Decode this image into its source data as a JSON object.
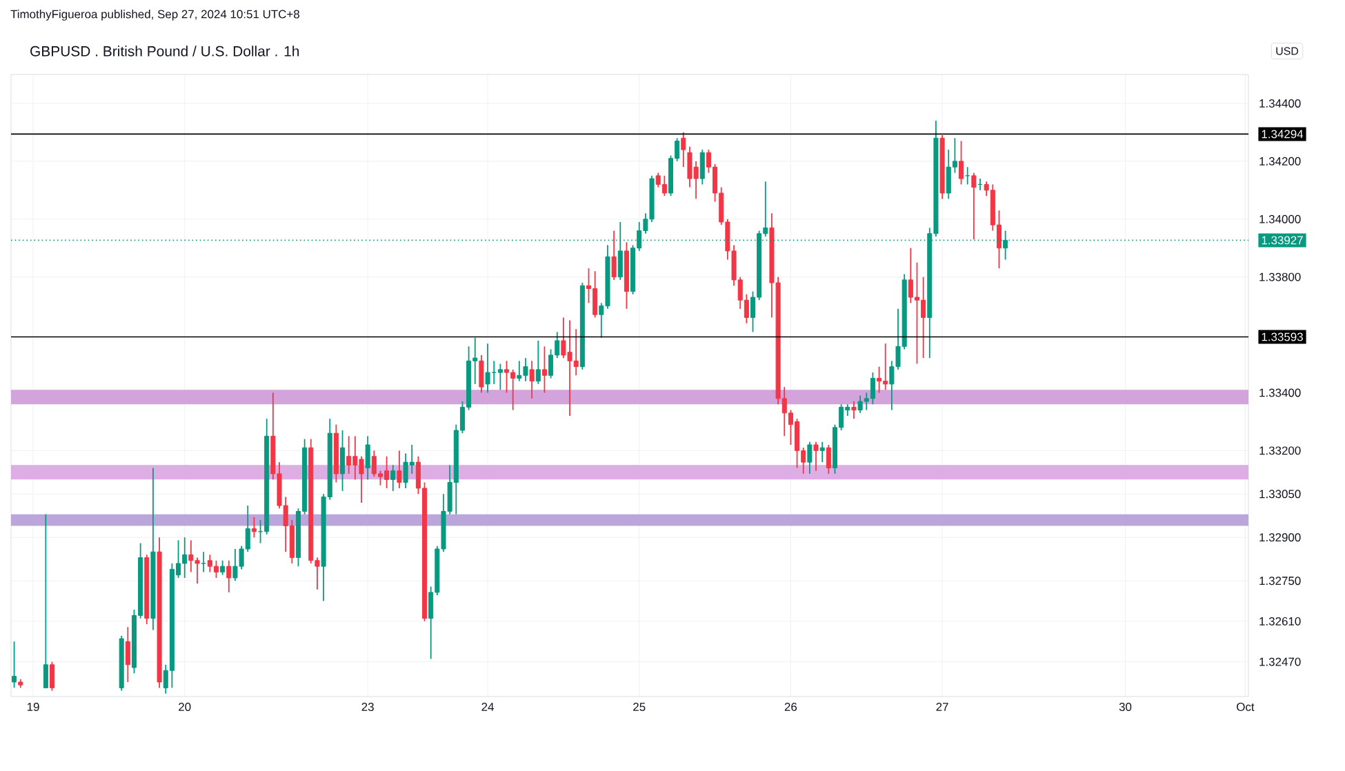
{
  "chart_data": {
    "type": "candlestick",
    "title": "GBPUSD . British Pound / U.S. Dollar . 1h",
    "annotations": [
      "TimothyFigueroa published, Sep 27, 2024 10:51 UTC+8",
      "USD"
    ],
    "grid": true,
    "ylim": [
      1.3235,
      1.345
    ],
    "yticks": [
      {
        "value": 1.344,
        "label": "1.34400"
      },
      {
        "value": 1.342,
        "label": "1.34200"
      },
      {
        "value": 1.34,
        "label": "1.34000"
      },
      {
        "value": 1.338,
        "label": "1.33800"
      },
      {
        "value": 1.334,
        "label": "1.33400"
      },
      {
        "value": 1.332,
        "label": "1.33200"
      },
      {
        "value": 1.3305,
        "label": "1.33050"
      },
      {
        "value": 1.329,
        "label": "1.32900"
      },
      {
        "value": 1.3275,
        "label": "1.32750"
      },
      {
        "value": 1.3261,
        "label": "1.32610"
      },
      {
        "value": 1.3247,
        "label": "1.32470"
      }
    ],
    "ref_lines": [
      {
        "axis": "y",
        "value": 1.34294,
        "label": "1.34294",
        "color": "#000000",
        "line_style": "solid"
      },
      {
        "axis": "y",
        "value": 1.33593,
        "label": "1.33593",
        "color": "#000000",
        "line_style": "solid"
      },
      {
        "axis": "y",
        "value": 1.33927,
        "label": "1.33927",
        "color": "#089981",
        "line_style": "dotted"
      }
    ],
    "bands": [
      {
        "axis": "y",
        "from": 1.3336,
        "to": 1.3341,
        "color": "#d3a3dc"
      },
      {
        "axis": "y",
        "from": 1.331,
        "to": 1.3315,
        "color": "#dcaee3"
      },
      {
        "axis": "y",
        "from": 1.3294,
        "to": 1.3298,
        "color": "#bba6dc"
      }
    ],
    "categories": [
      null,
      null,
      null,
      "19",
      null,
      null,
      null,
      null,
      null,
      null,
      null,
      null,
      null,
      null,
      null,
      null,
      null,
      null,
      null,
      null,
      null,
      null,
      null,
      null,
      null,
      null,
      null,
      "20",
      null,
      null,
      null,
      null,
      null,
      null,
      null,
      null,
      null,
      null,
      null,
      null,
      null,
      null,
      null,
      null,
      null,
      null,
      null,
      null,
      null,
      null,
      null,
      null,
      null,
      null,
      null,
      null,
      "23",
      null,
      null,
      null,
      null,
      null,
      null,
      null,
      null,
      null,
      null,
      null,
      null,
      null,
      null,
      null,
      null,
      null,
      null,
      "24",
      null,
      null,
      null,
      null,
      null,
      null,
      null,
      null,
      null,
      null,
      null,
      null,
      null,
      null,
      null,
      null,
      null,
      null,
      null,
      null,
      null,
      null,
      null,
      "25",
      null,
      null,
      null,
      null,
      null,
      null,
      null,
      null,
      null,
      null,
      null,
      null,
      null,
      null,
      null,
      null,
      null,
      null,
      null,
      null,
      null,
      null,
      null,
      "26",
      null,
      null,
      null,
      null,
      null,
      null,
      null,
      null,
      null,
      null,
      null,
      null,
      null,
      null,
      null,
      null,
      null,
      null,
      null,
      null,
      null,
      null,
      null,
      "27",
      null,
      null,
      null,
      null,
      null,
      null,
      null,
      null,
      null,
      null,
      null,
      null,
      null,
      null,
      null,
      null,
      null,
      null,
      null,
      null,
      null,
      null,
      null,
      null,
      null,
      null,
      null,
      null,
      "30",
      null,
      null,
      null,
      null,
      null,
      null,
      null,
      null,
      null,
      null,
      null,
      null,
      null,
      null,
      null,
      null,
      null,
      null,
      "Oct"
    ],
    "colors": [
      "#089981",
      "#f23645",
      null,
      null,
      null,
      "#089981",
      "#f23645",
      null,
      null,
      null,
      null,
      null,
      null,
      null,
      null,
      null,
      null,
      "#089981",
      "#f23645",
      "#089981",
      "#089981",
      "#f23645",
      "#089981",
      "#f23645",
      "#089981",
      "#089981",
      "#089981",
      "#089981",
      "#f23645",
      "#f23645",
      "#089981",
      "#f23645",
      "#f23645",
      "#089981",
      "#f23645",
      "#089981",
      "#089981",
      "#089981",
      "#f23645",
      "#089981",
      "#089981",
      "#f23645",
      "#f23645",
      "#f23645",
      "#f23645",
      "#089981",
      "#089981",
      "#f23645",
      "#f23645",
      "#089981",
      "#089981",
      "#f23645",
      "#089981",
      "#f23645",
      "#f23645",
      "#f23645",
      "#089981",
      "#f23645",
      "#f23645",
      "#f23645",
      "#089981",
      "#f23645",
      "#089981",
      "#089981",
      "#f23645",
      "#f23645",
      "#089981",
      "#089981",
      "#089981",
      "#089981",
      "#089981",
      "#089981",
      "#089981",
      "#089981",
      "#f23645",
      "#089981",
      "#089981",
      "#089981",
      "#f23645",
      "#f23645",
      "#089981",
      "#089981",
      "#f23645",
      "#089981",
      "#f23645",
      "#089981",
      "#089981",
      "#f23645",
      "#f23645",
      "#f23645",
      "#089981",
      "#f23645",
      "#f23645",
      "#089981",
      "#089981",
      "#f23645",
      "#089981",
      "#f23645",
      "#089981",
      "#089981",
      "#089981",
      "#089981",
      "#f23645",
      "#f23645",
      "#089981",
      "#089981",
      "#f23645",
      "#f23645",
      "#f23645",
      "#089981",
      "#f23645",
      "#f23645",
      "#f23645",
      "#f23645",
      "#f23645",
      "#f23645",
      "#f23645",
      "#089981",
      "#089981",
      "#089981",
      "#f23645",
      "#f23645",
      "#f23645",
      "#f23645",
      "#f23645",
      "#f23645",
      "#089981",
      "#f23645",
      "#089981",
      "#f23645",
      "#089981",
      "#089981",
      "#089981",
      "#f23645",
      "#089981",
      "#089981",
      "#089981",
      "#f23645",
      "#f23645",
      "#089981",
      "#089981",
      "#089981",
      "#f23645",
      "#f23645",
      "#f23645",
      "#089981",
      "#089981",
      "#f23645",
      "#089981",
      "#089981",
      "#f23645",
      "#089981",
      "#f23645",
      "#089981",
      "#f23645",
      "#f23645",
      "#f23645",
      "#089981",
      null,
      null,
      null,
      null,
      null,
      null,
      null,
      null,
      null,
      null,
      null,
      null,
      null,
      null,
      null,
      null,
      null,
      null,
      null,
      null,
      null,
      null,
      null,
      null,
      null,
      null,
      null,
      null,
      null,
      null,
      null,
      null,
      null,
      null,
      null,
      null,
      null,
      null
    ],
    "ohlc": [
      [
        1.324,
        1.3254,
        1.3238,
        1.3242
      ],
      [
        1.324,
        1.3241,
        1.3238,
        1.3239
      ],
      null,
      null,
      null,
      [
        1.3238,
        1.3298,
        1.3238,
        1.3246
      ],
      [
        1.3246,
        1.3247,
        1.3237,
        1.3238
      ],
      null,
      null,
      null,
      null,
      null,
      null,
      null,
      null,
      null,
      null,
      [
        1.3238,
        1.3256,
        1.3237,
        1.3255
      ],
      [
        1.3254,
        1.3259,
        1.324,
        1.3246
      ],
      [
        1.3245,
        1.3265,
        1.3243,
        1.3263
      ],
      [
        1.3263,
        1.3288,
        1.3262,
        1.3283
      ],
      [
        1.3283,
        1.3284,
        1.326,
        1.3262
      ],
      [
        1.3262,
        1.3314,
        1.3258,
        1.3285
      ],
      [
        1.3285,
        1.329,
        1.3238,
        1.324
      ],
      [
        1.3238,
        1.3246,
        1.3236,
        1.3244
      ],
      [
        1.3244,
        1.3281,
        1.3238,
        1.3279
      ],
      [
        1.3277,
        1.3289,
        1.3276,
        1.3281
      ],
      [
        1.3281,
        1.329,
        1.3276,
        1.3284
      ],
      [
        1.3284,
        1.3289,
        1.3278,
        1.3282
      ],
      [
        1.3282,
        1.3283,
        1.3274,
        1.3281
      ],
      [
        1.3281,
        1.3285,
        1.3278,
        1.3281
      ],
      [
        1.3282,
        1.3284,
        1.3278,
        1.328
      ],
      [
        1.328,
        1.3282,
        1.3276,
        1.3278
      ],
      [
        1.3278,
        1.3282,
        1.3277,
        1.328
      ],
      [
        1.328,
        1.3282,
        1.3271,
        1.3276
      ],
      [
        1.3276,
        1.3286,
        1.3275,
        1.328
      ],
      [
        1.328,
        1.3287,
        1.3279,
        1.3286
      ],
      [
        1.3286,
        1.3301,
        1.3285,
        1.3293
      ],
      [
        1.3293,
        1.3297,
        1.329,
        1.3292
      ],
      [
        1.3292,
        1.3296,
        1.3288,
        1.3292
      ],
      [
        1.3292,
        1.3331,
        1.3291,
        1.3325
      ],
      [
        1.3325,
        1.334,
        1.331,
        1.3312
      ],
      [
        1.3312,
        1.3316,
        1.33,
        1.3301
      ],
      [
        1.3301,
        1.3304,
        1.3285,
        1.3294
      ],
      [
        1.3294,
        1.3296,
        1.3281,
        1.3283
      ],
      [
        1.3283,
        1.33,
        1.328,
        1.3299
      ],
      [
        1.3299,
        1.3324,
        1.3298,
        1.3321
      ],
      [
        1.3321,
        1.3324,
        1.3281,
        1.3282
      ],
      [
        1.3282,
        1.3283,
        1.3272,
        1.328
      ],
      [
        1.328,
        1.3305,
        1.3268,
        1.3304
      ],
      [
        1.3304,
        1.3331,
        1.3303,
        1.3326
      ],
      [
        1.3326,
        1.3329,
        1.3309,
        1.3312
      ],
      [
        1.3312,
        1.3327,
        1.3306,
        1.3321
      ],
      [
        1.3318,
        1.3325,
        1.3312,
        1.3315
      ],
      [
        1.3318,
        1.3325,
        1.331,
        1.3315
      ],
      [
        1.3317,
        1.3318,
        1.3302,
        1.3312
      ],
      [
        1.3314,
        1.3325,
        1.331,
        1.3322
      ],
      [
        1.3318,
        1.332,
        1.3311,
        1.3312
      ],
      [
        1.3312,
        1.3313,
        1.3308,
        1.3311
      ],
      [
        1.3313,
        1.3318,
        1.3307,
        1.331
      ],
      [
        1.331,
        1.3315,
        1.3306,
        1.3313
      ],
      [
        1.3313,
        1.332,
        1.3307,
        1.3309
      ],
      [
        1.3309,
        1.3319,
        1.3307,
        1.3316
      ],
      [
        1.3315,
        1.3322,
        1.3312,
        1.3316
      ],
      [
        1.3316,
        1.3318,
        1.3305,
        1.3307
      ],
      [
        1.3307,
        1.3309,
        1.3261,
        1.3262
      ],
      [
        1.3262,
        1.3273,
        1.3248,
        1.3271
      ],
      [
        1.3271,
        1.3287,
        1.327,
        1.3286
      ],
      [
        1.3286,
        1.3305,
        1.3285,
        1.3299
      ],
      [
        1.3299,
        1.3315,
        1.3298,
        1.3309
      ],
      [
        1.3309,
        1.3329,
        1.3298,
        1.3327
      ],
      [
        1.3327,
        1.3337,
        1.3326,
        1.3335
      ],
      [
        1.3335,
        1.3356,
        1.3334,
        1.3351
      ],
      [
        1.3351,
        1.3359,
        1.3343,
        1.3352
      ],
      [
        1.3351,
        1.3353,
        1.334,
        1.3342
      ],
      [
        1.3343,
        1.3357,
        1.334,
        1.3347
      ],
      [
        1.3347,
        1.3351,
        1.3343,
        1.3347
      ],
      [
        1.3347,
        1.335,
        1.3341,
        1.3348
      ],
      [
        1.3348,
        1.3351,
        1.334,
        1.3347
      ],
      [
        1.3347,
        1.3348,
        1.3334,
        1.3345
      ],
      [
        1.3345,
        1.3351,
        1.3344,
        1.3346
      ],
      [
        1.3346,
        1.3352,
        1.3344,
        1.3349
      ],
      [
        1.3348,
        1.3351,
        1.3338,
        1.3344
      ],
      [
        1.3344,
        1.3358,
        1.3343,
        1.3348
      ],
      [
        1.3348,
        1.3356,
        1.334,
        1.3346
      ],
      [
        1.3346,
        1.3355,
        1.3345,
        1.3353
      ],
      [
        1.3353,
        1.3361,
        1.3352,
        1.3358
      ],
      [
        1.3358,
        1.3366,
        1.3352,
        1.3353
      ],
      [
        1.3354,
        1.3365,
        1.3332,
        1.3351
      ],
      [
        1.3351,
        1.3362,
        1.3346,
        1.3349
      ],
      [
        1.3349,
        1.3378,
        1.3348,
        1.3377
      ],
      [
        1.3377,
        1.3383,
        1.3371,
        1.3376
      ],
      [
        1.3376,
        1.3382,
        1.3366,
        1.3367
      ],
      [
        1.3367,
        1.3371,
        1.3359,
        1.337
      ],
      [
        1.337,
        1.3391,
        1.3369,
        1.3387
      ],
      [
        1.3387,
        1.3396,
        1.3379,
        1.338
      ],
      [
        1.338,
        1.3399,
        1.3379,
        1.3389
      ],
      [
        1.3389,
        1.3392,
        1.3369,
        1.3375
      ],
      [
        1.3375,
        1.3391,
        1.3374,
        1.339
      ],
      [
        1.339,
        1.3399,
        1.3389,
        1.3396
      ],
      [
        1.3396,
        1.3402,
        1.3395,
        1.34
      ],
      [
        1.34,
        1.3415,
        1.3399,
        1.3414
      ],
      [
        1.3415,
        1.3416,
        1.3411,
        1.3412
      ],
      [
        1.3412,
        1.3415,
        1.3408,
        1.3409
      ],
      [
        1.3409,
        1.3422,
        1.3408,
        1.3421
      ],
      [
        1.3421,
        1.3428,
        1.342,
        1.3427
      ],
      [
        1.3428,
        1.343,
        1.3418,
        1.3424
      ],
      [
        1.3423,
        1.3425,
        1.3411,
        1.3414
      ],
      [
        1.3418,
        1.342,
        1.3407,
        1.3414
      ],
      [
        1.3414,
        1.3424,
        1.3412,
        1.3423
      ],
      [
        1.3423,
        1.3424,
        1.3416,
        1.3418
      ],
      [
        1.3418,
        1.3419,
        1.3406,
        1.3409
      ],
      [
        1.3409,
        1.3411,
        1.3398,
        1.3399
      ],
      [
        1.3399,
        1.34,
        1.3386,
        1.3389
      ],
      [
        1.3389,
        1.3391,
        1.3377,
        1.3379
      ],
      [
        1.3379,
        1.338,
        1.3369,
        1.3372
      ],
      [
        1.3372,
        1.3374,
        1.3364,
        1.3366
      ],
      [
        1.3366,
        1.3375,
        1.3361,
        1.3373
      ],
      [
        1.3373,
        1.3396,
        1.3372,
        1.3395
      ],
      [
        1.3395,
        1.3413,
        1.3394,
        1.3397
      ],
      [
        1.3397,
        1.3402,
        1.3366,
        1.3378
      ],
      [
        1.3378,
        1.338,
        1.3336,
        1.3338
      ],
      [
        1.3338,
        1.3342,
        1.3325,
        1.3333
      ],
      [
        1.3333,
        1.3334,
        1.3322,
        1.3329
      ],
      [
        1.333,
        1.3331,
        1.3314,
        1.332
      ],
      [
        1.332,
        1.3321,
        1.3312,
        1.3316
      ],
      [
        1.3316,
        1.3323,
        1.3312,
        1.3322
      ],
      [
        1.3322,
        1.3323,
        1.3313,
        1.332
      ],
      [
        1.332,
        1.3323,
        1.3316,
        1.3321
      ],
      [
        1.3321,
        1.3322,
        1.3312,
        1.3314
      ],
      [
        1.3314,
        1.3329,
        1.3312,
        1.3328
      ],
      [
        1.3328,
        1.3336,
        1.3327,
        1.3335
      ],
      [
        1.3334,
        1.3336,
        1.3332,
        1.3335
      ],
      [
        1.3335,
        1.3337,
        1.3331,
        1.3334
      ],
      [
        1.3334,
        1.3339,
        1.3333,
        1.3337
      ],
      [
        1.3337,
        1.334,
        1.3334,
        1.3338
      ],
      [
        1.3338,
        1.3347,
        1.3336,
        1.3345
      ],
      [
        1.3345,
        1.3349,
        1.334,
        1.3344
      ],
      [
        1.3344,
        1.3357,
        1.3341,
        1.3343
      ],
      [
        1.3343,
        1.3351,
        1.3334,
        1.3349
      ],
      [
        1.3349,
        1.3369,
        1.3348,
        1.3356
      ],
      [
        1.3356,
        1.3381,
        1.3355,
        1.3379
      ],
      [
        1.3379,
        1.339,
        1.3371,
        1.3373
      ],
      [
        1.3373,
        1.3385,
        1.335,
        1.3372
      ],
      [
        1.3372,
        1.338,
        1.3352,
        1.3366
      ],
      [
        1.3366,
        1.3397,
        1.3352,
        1.3395
      ],
      [
        1.3395,
        1.3434,
        1.3394,
        1.3428
      ],
      [
        1.3428,
        1.3429,
        1.3407,
        1.3409
      ],
      [
        1.3409,
        1.3424,
        1.3407,
        1.3418
      ],
      [
        1.3418,
        1.3428,
        1.3416,
        1.342
      ],
      [
        1.342,
        1.3427,
        1.3412,
        1.3414
      ],
      [
        1.3415,
        1.3418,
        1.3412,
        1.3415
      ],
      [
        1.3415,
        1.3416,
        1.3393,
        1.3411
      ],
      [
        1.3412,
        1.3414,
        1.341,
        1.3412
      ],
      [
        1.3412,
        1.3413,
        1.3408,
        1.341
      ],
      [
        1.341,
        1.3412,
        1.3396,
        1.3398
      ],
      [
        1.3398,
        1.3403,
        1.3383,
        1.339
      ],
      [
        1.339,
        1.3396,
        1.3386,
        1.33927
      ],
      null,
      null,
      null,
      null,
      null,
      null,
      null,
      null,
      null,
      null,
      null,
      null,
      null,
      null,
      null,
      null,
      null,
      null,
      null,
      null,
      null,
      null,
      null,
      null,
      null,
      null,
      null,
      null,
      null,
      null,
      null,
      null,
      null,
      null,
      null,
      null,
      null,
      null
    ]
  }
}
